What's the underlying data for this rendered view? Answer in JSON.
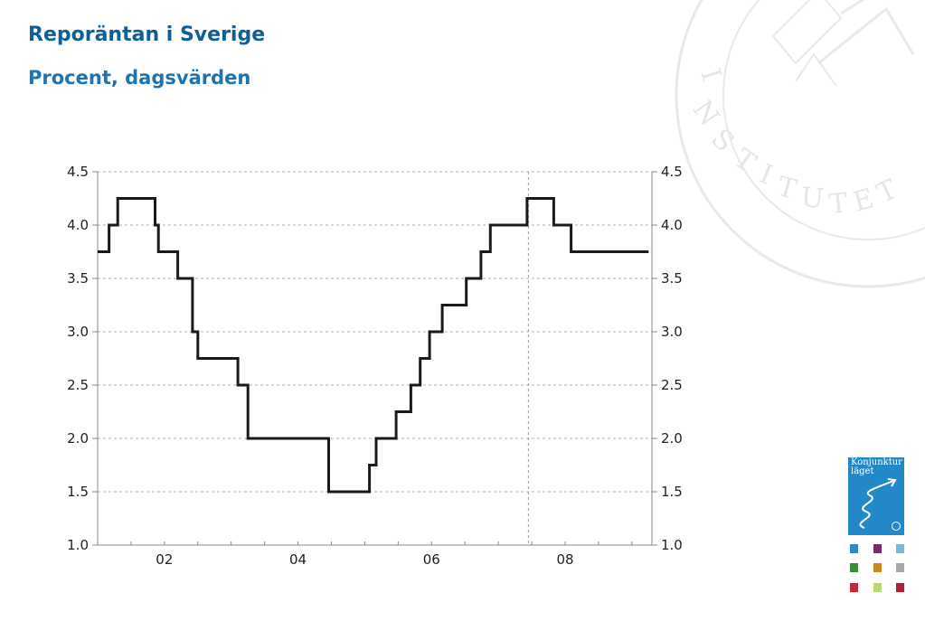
{
  "header": {
    "title": "Reporäntan i Sverige",
    "subtitle": "Procent, dagsvärden"
  },
  "chart_data": {
    "type": "line",
    "title": "Reporäntan i Sverige",
    "subtitle": "Procent, dagsvärden",
    "xlabel": "",
    "ylabel": "",
    "x_ticks": [
      "02",
      "04",
      "06",
      "08"
    ],
    "ylim": [
      1.0,
      4.5
    ],
    "y_ticks": [
      "1.0",
      "1.5",
      "2.0",
      "2.5",
      "3.0",
      "3.5",
      "4.0",
      "4.5"
    ],
    "grid": "horizontal dashed",
    "vertical_marker_year": 2007.95,
    "series": [
      {
        "step": "post",
        "color": "#000000",
        "points": [
          [
            2001.5,
            3.75
          ],
          [
            2001.67,
            4.0
          ],
          [
            2001.8,
            4.25
          ],
          [
            2002.36,
            4.0
          ],
          [
            2002.41,
            3.75
          ],
          [
            2002.7,
            3.5
          ],
          [
            2002.92,
            3.0
          ],
          [
            2003.0,
            2.75
          ],
          [
            2003.6,
            2.5
          ],
          [
            2003.75,
            2.0
          ],
          [
            2004.96,
            1.5
          ],
          [
            2005.57,
            1.75
          ],
          [
            2005.67,
            2.0
          ],
          [
            2005.97,
            2.25
          ],
          [
            2006.19,
            2.5
          ],
          [
            2006.33,
            2.75
          ],
          [
            2006.47,
            3.0
          ],
          [
            2006.66,
            3.25
          ],
          [
            2007.02,
            3.5
          ],
          [
            2007.24,
            3.75
          ],
          [
            2007.38,
            4.0
          ],
          [
            2007.93,
            4.25
          ],
          [
            2008.33,
            4.0
          ],
          [
            2008.59,
            3.75
          ],
          [
            2009.75,
            3.75
          ]
        ]
      }
    ]
  },
  "logo": {
    "text": "Konjunktur läget",
    "color": "#2288c8"
  },
  "swatches": [
    "#2c88c8",
    "#7a2a6c",
    "#7ab8d8",
    "#3e8a3c",
    "#c88a1a",
    "#a8a8a8",
    "#c8283c",
    "#b8d870",
    "#b81e32"
  ]
}
